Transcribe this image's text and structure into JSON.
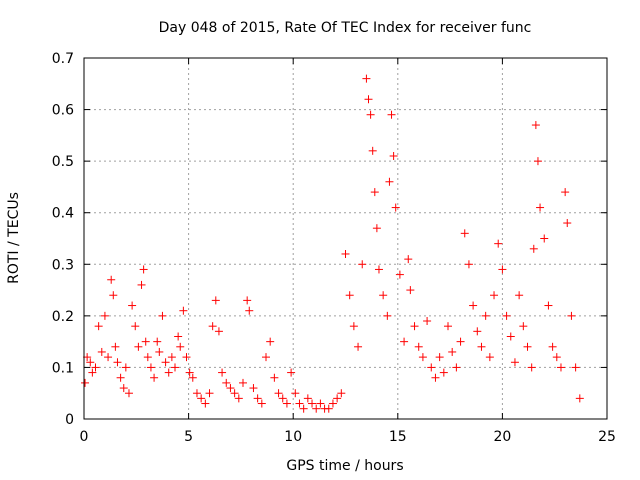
{
  "chart_data": {
    "type": "scatter",
    "title": "Day 048 of 2015, Rate Of TEC Index for receiver func",
    "xlabel": "GPS time / hours",
    "ylabel": "ROTI / TECUs",
    "xlim": [
      0,
      25
    ],
    "ylim": [
      0,
      0.7
    ],
    "xticks": [
      0,
      5,
      10,
      15,
      20,
      25
    ],
    "yticks": [
      0,
      0.1,
      0.2,
      0.3,
      0.4,
      0.5,
      0.6,
      0.7
    ],
    "x_tick_labels": [
      "0",
      "5",
      "10",
      "15",
      "20",
      "25"
    ],
    "y_tick_labels": [
      "0",
      "0.1",
      "0.2",
      "0.3",
      "0.4",
      "0.5",
      "0.6",
      "0.7"
    ],
    "grid": true,
    "marker": "+",
    "marker_color": "#ff0000",
    "series": [
      {
        "x": [
          0.05,
          0.15,
          0.3,
          0.4,
          0.55,
          0.7,
          0.85,
          1.0,
          1.15,
          1.3,
          1.4,
          1.5,
          1.6,
          1.75,
          1.9,
          2.0,
          2.15,
          2.3,
          2.45,
          2.6,
          2.75,
          2.85,
          2.95,
          3.05,
          3.2,
          3.35,
          3.5,
          3.6,
          3.75,
          3.9,
          4.05,
          4.2,
          4.35,
          4.5,
          4.6,
          4.75,
          4.9,
          5.05,
          5.2,
          5.4,
          5.6,
          5.8,
          6.0,
          6.15,
          6.3,
          6.45,
          6.6,
          6.8,
          7.0,
          7.2,
          7.4,
          7.6,
          7.8,
          7.9,
          8.1,
          8.3,
          8.5,
          8.7,
          8.9,
          9.1,
          9.3,
          9.5,
          9.7,
          9.9,
          10.1,
          10.3,
          10.5,
          10.7,
          10.9,
          11.1,
          11.3,
          11.5,
          11.7,
          11.9,
          12.1,
          12.3,
          12.5,
          12.7,
          12.9,
          13.1,
          13.3,
          13.5,
          13.6,
          13.7,
          13.8,
          13.9,
          14.0,
          14.1,
          14.3,
          14.5,
          14.6,
          14.7,
          14.8,
          14.9,
          15.1,
          15.3,
          15.5,
          15.6,
          15.8,
          16.0,
          16.2,
          16.4,
          16.6,
          16.8,
          17.0,
          17.2,
          17.4,
          17.6,
          17.8,
          18.0,
          18.2,
          18.4,
          18.6,
          18.8,
          19.0,
          19.2,
          19.4,
          19.6,
          19.8,
          20.0,
          20.2,
          20.4,
          20.6,
          20.8,
          21.0,
          21.2,
          21.4,
          21.5,
          21.6,
          21.7,
          21.8,
          22.0,
          22.2,
          22.4,
          22.6,
          22.8,
          23.0,
          23.1,
          23.3,
          23.5,
          23.7
        ],
        "y": [
          0.07,
          0.12,
          0.11,
          0.09,
          0.1,
          0.18,
          0.13,
          0.2,
          0.12,
          0.27,
          0.24,
          0.14,
          0.11,
          0.08,
          0.06,
          0.1,
          0.05,
          0.22,
          0.18,
          0.14,
          0.26,
          0.29,
          0.15,
          0.12,
          0.1,
          0.08,
          0.15,
          0.13,
          0.2,
          0.11,
          0.09,
          0.12,
          0.1,
          0.16,
          0.14,
          0.21,
          0.12,
          0.09,
          0.08,
          0.05,
          0.04,
          0.03,
          0.05,
          0.18,
          0.23,
          0.17,
          0.09,
          0.07,
          0.06,
          0.05,
          0.04,
          0.07,
          0.23,
          0.21,
          0.06,
          0.04,
          0.03,
          0.12,
          0.15,
          0.08,
          0.05,
          0.04,
          0.03,
          0.09,
          0.05,
          0.03,
          0.02,
          0.04,
          0.03,
          0.02,
          0.03,
          0.02,
          0.02,
          0.03,
          0.04,
          0.05,
          0.32,
          0.24,
          0.18,
          0.14,
          0.3,
          0.66,
          0.62,
          0.59,
          0.52,
          0.44,
          0.37,
          0.29,
          0.24,
          0.2,
          0.46,
          0.59,
          0.51,
          0.41,
          0.28,
          0.15,
          0.31,
          0.25,
          0.18,
          0.14,
          0.12,
          0.19,
          0.1,
          0.08,
          0.12,
          0.09,
          0.18,
          0.13,
          0.1,
          0.15,
          0.36,
          0.3,
          0.22,
          0.17,
          0.14,
          0.2,
          0.12,
          0.24,
          0.34,
          0.29,
          0.2,
          0.16,
          0.11,
          0.24,
          0.18,
          0.14,
          0.1,
          0.33,
          0.57,
          0.5,
          0.41,
          0.35,
          0.22,
          0.14,
          0.12,
          0.1,
          0.44,
          0.38,
          0.2,
          0.1,
          0.04
        ]
      }
    ]
  }
}
